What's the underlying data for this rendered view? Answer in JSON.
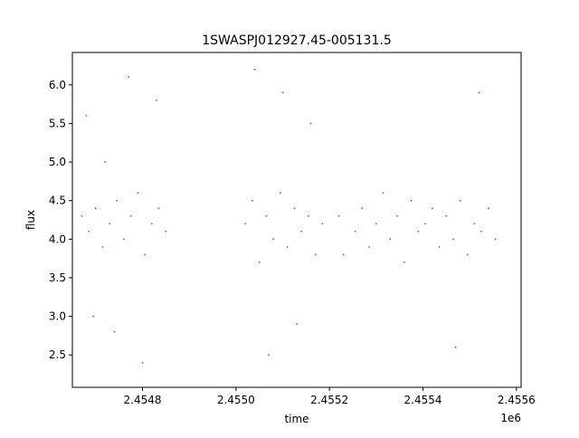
{
  "chart_data": {
    "type": "scatter",
    "title": "1SWASPJ012927.45-005131.5",
    "xlabel": "time",
    "ylabel": "flux",
    "x_offset_label": "1e6",
    "xlim": [
      2454650,
      2455610
    ],
    "ylim": [
      2.08,
      6.42
    ],
    "x_ticks": [
      2454800,
      2455000,
      2455200,
      2455400,
      2455600
    ],
    "x_tick_labels": [
      "2.4548",
      "2.4550",
      "2.4552",
      "2.4554",
      "2.4556"
    ],
    "y_ticks": [
      2.5,
      3.0,
      3.5,
      4.0,
      4.5,
      5.0,
      5.5,
      6.0
    ],
    "y_tick_labels": [
      "2.5",
      "3.0",
      "3.5",
      "4.0",
      "4.5",
      "5.0",
      "5.5",
      "6.0"
    ],
    "grid": false,
    "legend": "none",
    "marker_color": "#1f77b4",
    "series": [
      {
        "x": [
          2454670,
          2454685,
          2454700,
          2454715,
          2454730,
          2454745,
          2454760,
          2454775,
          2454790,
          2454805,
          2454820,
          2454835,
          2454850,
          2454680,
          2454695,
          2454720,
          2454740,
          2454770,
          2454800,
          2454830,
          2455020,
          2455035,
          2455050,
          2455065,
          2455080,
          2455095,
          2455110,
          2455125,
          2455140,
          2455155,
          2455170,
          2455185,
          2455040,
          2455070,
          2455100,
          2455130,
          2455160,
          2455220,
          2455230,
          2455255,
          2455270,
          2455285,
          2455300,
          2455315,
          2455330,
          2455345,
          2455360,
          2455375,
          2455390,
          2455405,
          2455420,
          2455435,
          2455450,
          2455465,
          2455480,
          2455495,
          2455510,
          2455525,
          2455540,
          2455555,
          2455470,
          2455520
        ],
        "y": [
          4.3,
          4.1,
          4.4,
          3.9,
          4.2,
          4.5,
          4.0,
          4.3,
          4.6,
          3.8,
          4.2,
          4.4,
          4.1,
          5.6,
          3.0,
          5.0,
          2.8,
          6.1,
          2.4,
          5.8,
          4.2,
          4.5,
          3.7,
          4.3,
          4.0,
          4.6,
          3.9,
          4.4,
          4.1,
          4.3,
          3.8,
          4.2,
          6.2,
          2.5,
          5.9,
          2.9,
          5.5,
          4.3,
          3.8,
          4.1,
          4.4,
          3.9,
          4.2,
          4.6,
          4.0,
          4.3,
          3.7,
          4.5,
          4.1,
          4.2,
          4.4,
          3.9,
          4.3,
          4.0,
          4.5,
          3.8,
          4.2,
          4.1,
          4.4,
          4.0,
          2.6,
          5.9
        ]
      }
    ]
  }
}
